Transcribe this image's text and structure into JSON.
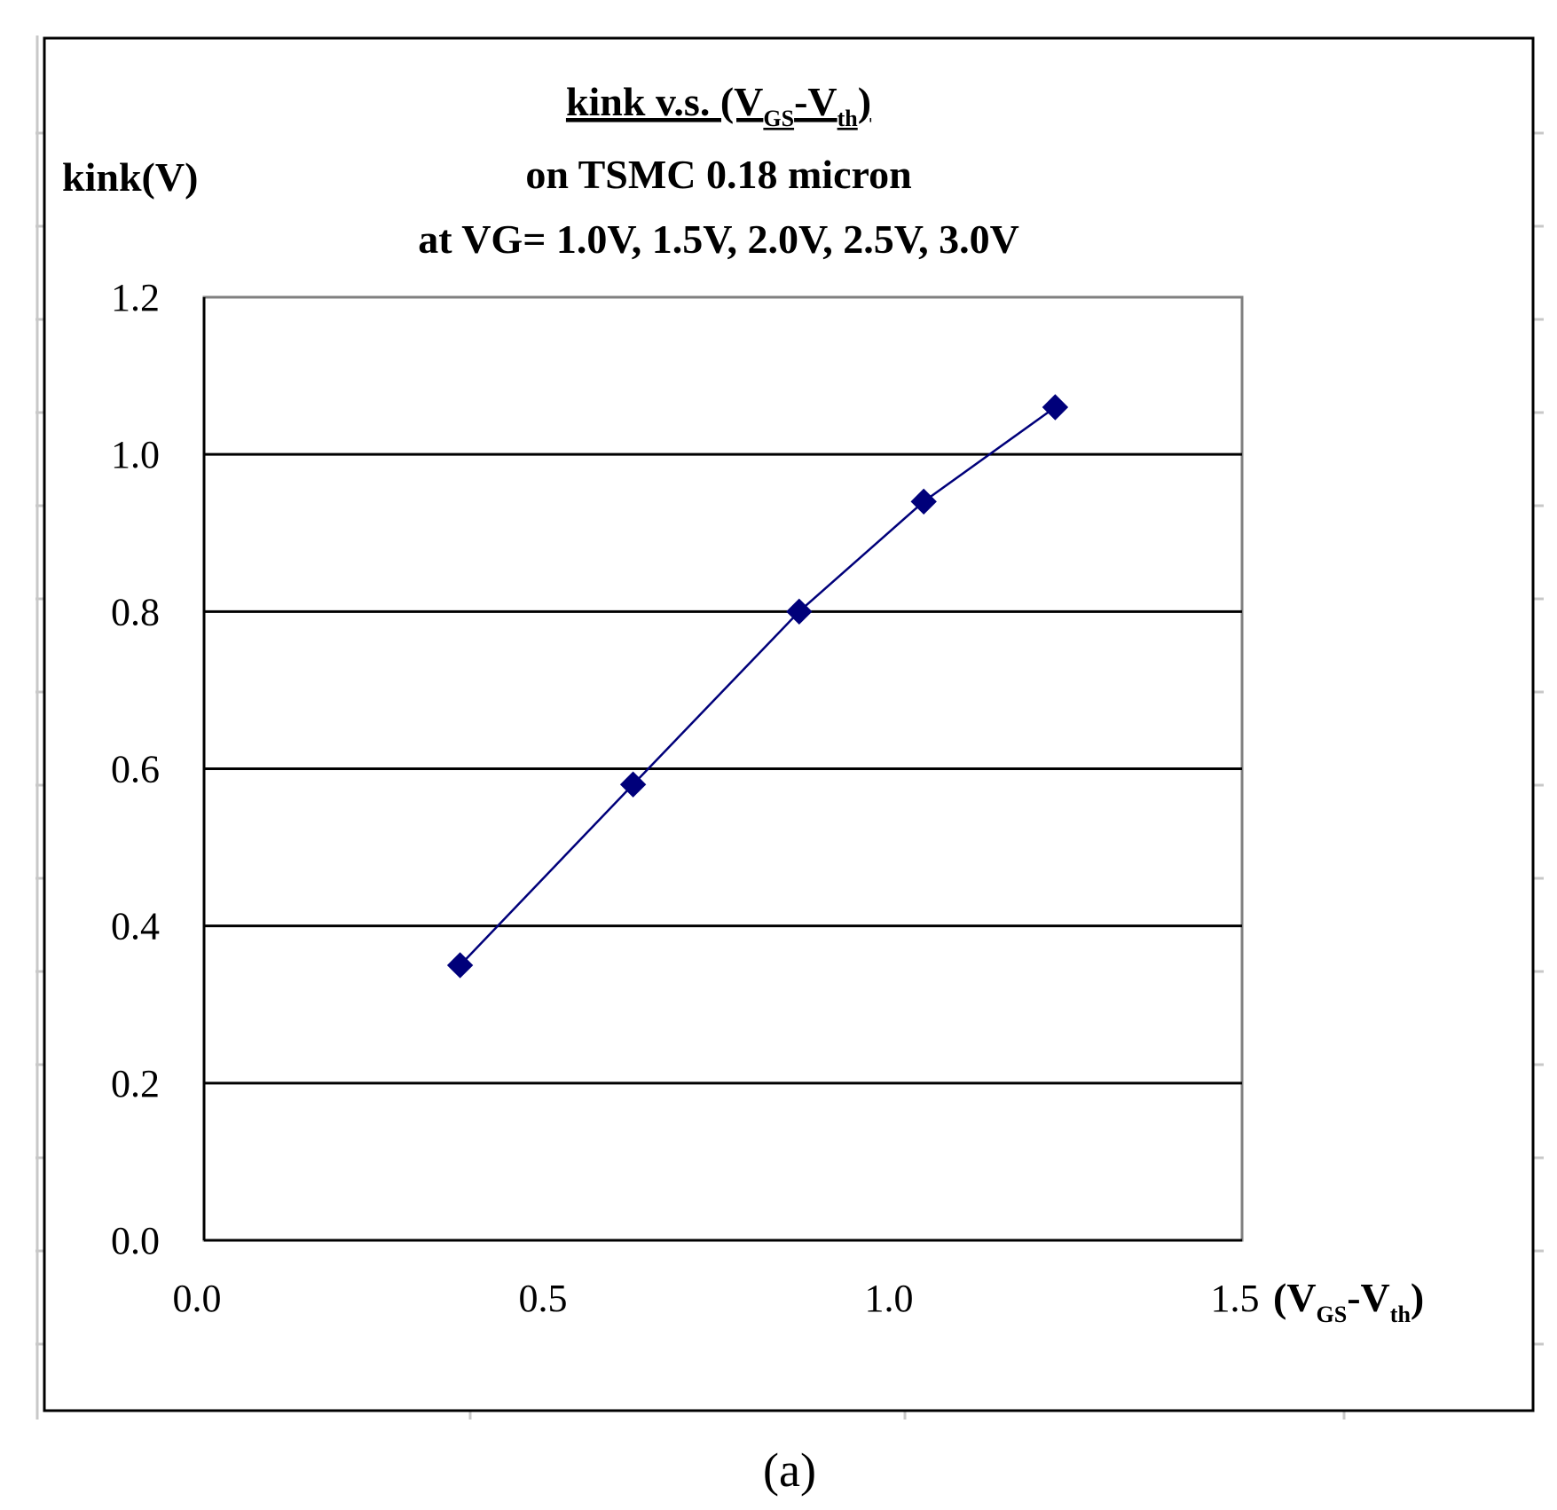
{
  "chart_data": {
    "type": "scatter",
    "title_lines": [
      {
        "parts": [
          {
            "text": "kink v.s. (V"
          },
          {
            "text": "GS",
            "sub": true
          },
          {
            "text": "-V"
          },
          {
            "text": "th",
            "sub": true
          },
          {
            "text": ")"
          }
        ],
        "underline": true
      },
      {
        "parts": [
          {
            "text": "on TSMC 0.18 micron"
          }
        ],
        "underline": false
      },
      {
        "parts": [
          {
            "text": "at VG= 1.0V, 1.5V, 2.0V, 2.5V, 3.0V"
          }
        ],
        "underline": false
      }
    ],
    "ylabel": "kink(V)",
    "xlabel_parts": [
      {
        "text": "(V"
      },
      {
        "text": "GS",
        "sub": true
      },
      {
        "text": "-V"
      },
      {
        "text": "th",
        "sub": true
      },
      {
        "text": ")"
      }
    ],
    "xlim": [
      0,
      1.5
    ],
    "ylim": [
      0,
      1.2
    ],
    "x_ticks": [
      "0.0",
      "0.5",
      "1.0",
      "1.5"
    ],
    "y_ticks": [
      "0.0",
      "0.2",
      "0.4",
      "0.6",
      "0.8",
      "1.0",
      "1.2"
    ],
    "grid": "horizontal",
    "series": [
      {
        "color": "#00007a",
        "marker": "diamond",
        "x": [
          0.37,
          0.62,
          0.86,
          1.04,
          1.23
        ],
        "y": [
          0.35,
          0.58,
          0.8,
          0.94,
          1.06
        ]
      }
    ]
  },
  "caption": "(a)"
}
